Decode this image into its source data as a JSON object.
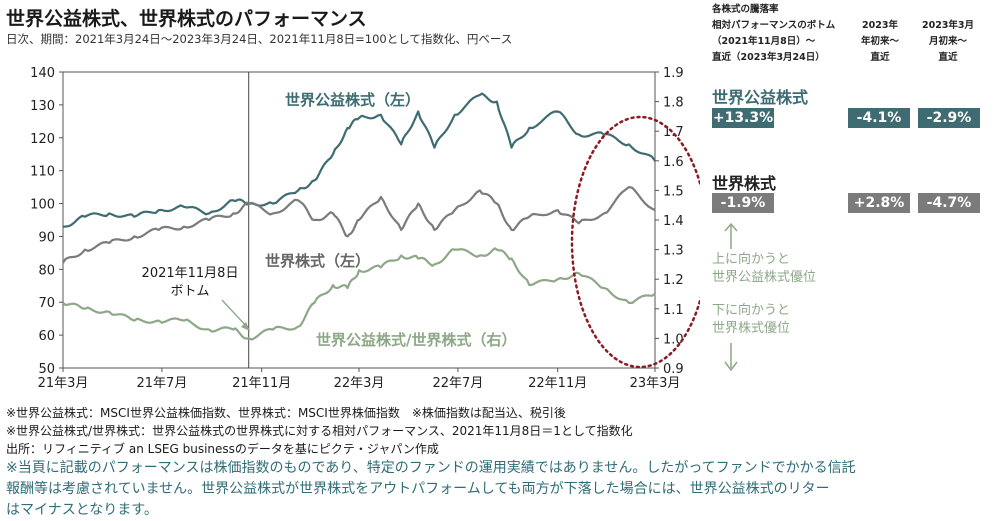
{
  "header": {
    "title": "世界公益株式、世界株式のパフォーマンス",
    "subtitle": "日次、期間：2021年3月24日～2023年3月24日、2021年11月8日=100として指数化、円ベース"
  },
  "table": {
    "col_header_1": [
      "各株式の騰落率",
      "相対パフォーマンスのボトム",
      "（2021年11月8日）～",
      "直近（2023年3月24日）"
    ],
    "col_header_2": [
      "2023年",
      "年初来～",
      "直近"
    ],
    "col_header_3": [
      "2023年3月",
      "月初来～",
      "直近"
    ],
    "rows": [
      {
        "label": "世界公益株式",
        "values": [
          "+13.3%",
          "-4.1%",
          "-2.9%"
        ],
        "color": "#3e6c72"
      },
      {
        "label": "世界株式",
        "values": [
          "-1.9%",
          "+2.8%",
          "-4.7%"
        ],
        "color": "#7b7b7b"
      }
    ]
  },
  "side_notes": {
    "up": [
      "上に向かうと",
      "世界公益株式優位"
    ],
    "down": [
      "下に向かうと",
      "世界株式優位"
    ],
    "arrow_color": "#8da887"
  },
  "chart_data": {
    "type": "line",
    "x_ticks": [
      "21年3月",
      "21年7月",
      "21年11月",
      "22年3月",
      "22年7月",
      "22年11月",
      "23年3月"
    ],
    "x_tick_dates": [
      "2021-03-24",
      "2021-07-24",
      "2021-11-24",
      "2022-03-24",
      "2022-07-24",
      "2022-11-24",
      "2023-03-24"
    ],
    "x_range": [
      "2021-03-24",
      "2023-03-24"
    ],
    "ylim_left": [
      50,
      140
    ],
    "yticks_left": [
      50,
      60,
      70,
      80,
      90,
      100,
      110,
      120,
      130,
      140
    ],
    "ylim_right": [
      0.9,
      1.9
    ],
    "yticks_right": [
      "0.9",
      "1.0",
      "1.1",
      "1.2",
      "1.3",
      "1.4",
      "1.5",
      "1.6",
      "1.7",
      "1.8",
      "1.9"
    ],
    "reference_line_date": "2021-11-08",
    "annotation": [
      "2021年11月8日",
      "ボトム"
    ],
    "grid": false,
    "series": [
      {
        "name": "世界公益株式（左）",
        "axis": "left",
        "color": "#3e6c72",
        "points": [
          [
            "2021-03-24",
            93
          ],
          [
            "2021-04-20",
            96
          ],
          [
            "2021-05-20",
            97
          ],
          [
            "2021-06-20",
            96
          ],
          [
            "2021-07-20",
            98
          ],
          [
            "2021-08-20",
            99
          ],
          [
            "2021-09-20",
            97
          ],
          [
            "2021-10-20",
            101
          ],
          [
            "2021-11-08",
            100
          ],
          [
            "2021-12-08",
            100
          ],
          [
            "2022-01-08",
            104
          ],
          [
            "2022-01-28",
            107
          ],
          [
            "2022-02-20",
            115
          ],
          [
            "2022-03-10",
            123
          ],
          [
            "2022-03-24",
            126
          ],
          [
            "2022-04-20",
            127
          ],
          [
            "2022-05-15",
            118
          ],
          [
            "2022-06-05",
            128
          ],
          [
            "2022-06-25",
            117
          ],
          [
            "2022-07-20",
            127
          ],
          [
            "2022-08-20",
            133
          ],
          [
            "2022-09-10",
            131
          ],
          [
            "2022-09-28",
            117
          ],
          [
            "2022-10-20",
            123
          ],
          [
            "2022-11-24",
            128
          ],
          [
            "2022-12-20",
            121
          ],
          [
            "2023-01-20",
            121
          ],
          [
            "2023-02-20",
            118
          ],
          [
            "2023-03-24",
            113
          ]
        ]
      },
      {
        "name": "世界株式（左）",
        "axis": "left",
        "color": "#7b7b7b",
        "points": [
          [
            "2021-03-24",
            82
          ],
          [
            "2021-04-20",
            86
          ],
          [
            "2021-05-20",
            88
          ],
          [
            "2021-06-20",
            90
          ],
          [
            "2021-07-20",
            92
          ],
          [
            "2021-08-20",
            93
          ],
          [
            "2021-09-20",
            95
          ],
          [
            "2021-10-20",
            97
          ],
          [
            "2021-11-08",
            100
          ],
          [
            "2021-12-08",
            97
          ],
          [
            "2022-01-08",
            101
          ],
          [
            "2022-01-28",
            95
          ],
          [
            "2022-02-20",
            97
          ],
          [
            "2022-03-10",
            90
          ],
          [
            "2022-03-24",
            95
          ],
          [
            "2022-04-20",
            102
          ],
          [
            "2022-05-15",
            92
          ],
          [
            "2022-06-05",
            100
          ],
          [
            "2022-06-25",
            92
          ],
          [
            "2022-07-20",
            98
          ],
          [
            "2022-08-20",
            104
          ],
          [
            "2022-09-10",
            100
          ],
          [
            "2022-09-28",
            92
          ],
          [
            "2022-10-20",
            96
          ],
          [
            "2022-11-24",
            98
          ],
          [
            "2022-12-20",
            94
          ],
          [
            "2023-01-20",
            97
          ],
          [
            "2023-02-20",
            105
          ],
          [
            "2023-03-24",
            98
          ]
        ]
      },
      {
        "name": "世界公益株式/世界株式（右）",
        "axis": "right",
        "color": "#8da887",
        "points": [
          [
            "2021-03-24",
            1.12
          ],
          [
            "2021-04-20",
            1.1
          ],
          [
            "2021-05-20",
            1.09
          ],
          [
            "2021-06-20",
            1.06
          ],
          [
            "2021-07-20",
            1.06
          ],
          [
            "2021-08-20",
            1.06
          ],
          [
            "2021-09-20",
            1.03
          ],
          [
            "2021-10-20",
            1.03
          ],
          [
            "2021-11-08",
            1.0
          ],
          [
            "2021-12-08",
            1.03
          ],
          [
            "2022-01-08",
            1.04
          ],
          [
            "2022-01-28",
            1.12
          ],
          [
            "2022-02-20",
            1.18
          ],
          [
            "2022-03-10",
            1.17
          ],
          [
            "2022-03-24",
            1.23
          ],
          [
            "2022-04-20",
            1.24
          ],
          [
            "2022-05-15",
            1.28
          ],
          [
            "2022-06-05",
            1.27
          ],
          [
            "2022-06-25",
            1.25
          ],
          [
            "2022-07-20",
            1.3
          ],
          [
            "2022-08-20",
            1.28
          ],
          [
            "2022-09-10",
            1.3
          ],
          [
            "2022-09-28",
            1.27
          ],
          [
            "2022-10-20",
            1.18
          ],
          [
            "2022-11-24",
            1.2
          ],
          [
            "2022-12-20",
            1.22
          ],
          [
            "2023-01-20",
            1.17
          ],
          [
            "2023-02-20",
            1.12
          ],
          [
            "2023-03-24",
            1.15
          ]
        ]
      }
    ],
    "series_labels": [
      "世界公益株式（左）",
      "世界株式（左）",
      "世界公益株式/世界株式（右）"
    ]
  },
  "footnotes": [
    "※世界公益株式：MSCI世界公益株価指数、世界株式：MSCI世界株価指数　※株価指数は配当込、税引後",
    "※世界公益株式/世界株式：世界公益株式の世界株式に対する相対パフォーマンス、2021年11月8日＝1として指数化",
    "出所：リフィニティブ an LSEG businessのデータを基にピクテ・ジャパン作成"
  ],
  "disclaimer": [
    "※当頁に記載のパフォーマンスは株価指数のものであり、特定のファンドの運用実績ではありません。したがってファンドでかかる信託",
    "報酬等は考慮されていません。世界公益株式が世界株式をアウトパフォームしても両方が下落した場合には、世界公益株式のリター",
    "はマイナスとなります。"
  ]
}
